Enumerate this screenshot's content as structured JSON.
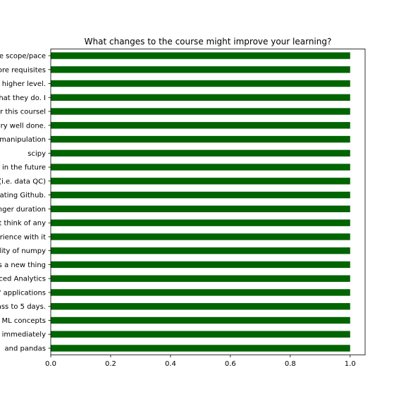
{
  "chart_data": {
    "type": "bar",
    "orientation": "horizontal",
    "title": "What changes to the course might improve your learning?",
    "xlabel": "",
    "ylabel": "",
    "xlim": [
      0,
      1.05
    ],
    "xticks": [
      "0.0",
      "0.2",
      "0.4",
      "0.6",
      "0.8",
      "1.0"
    ],
    "grid": false,
    "bar_color": "#006400",
    "categories": [
      "e scope/pace",
      "ore requisites",
      "higher level.",
      "hat they do. I",
      "r this coursel",
      "ry well done.",
      "manipulation",
      "scipy",
      "in the future",
      "(i.e. data QC)",
      "ating Github.",
      "nger duration",
      "t think of any",
      "rience with it",
      "lity of numpy",
      "s a new thing",
      "ced Analytics",
      "' applications",
      "ass to 5 days.",
      "ML concepts",
      "immediately",
      "and pandas"
    ],
    "values": [
      1,
      1,
      1,
      1,
      1,
      1,
      1,
      1,
      1,
      1,
      1,
      1,
      1,
      1,
      1,
      1,
      1,
      1,
      1,
      1,
      1,
      1
    ]
  }
}
